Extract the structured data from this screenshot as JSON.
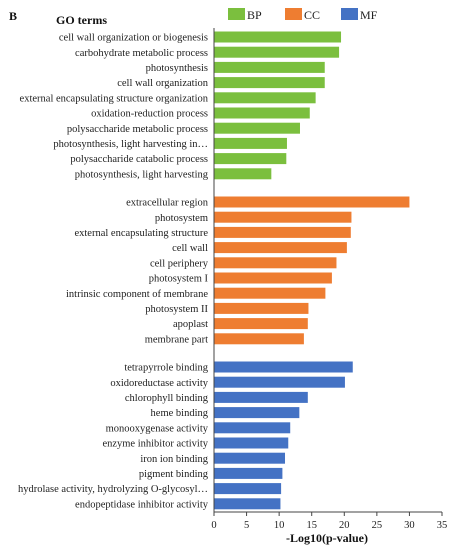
{
  "chart_data": {
    "type": "bar",
    "orientation": "horizontal",
    "panel_label": "B",
    "yaxis_title": "GO terms",
    "xlabel": "-Log10(p-value)",
    "xlim": [
      0,
      35
    ],
    "xticks": [
      "0",
      "5",
      "10",
      "15",
      "20",
      "25",
      "30",
      "35"
    ],
    "grid": false,
    "legend_position": "top-right",
    "series": [
      {
        "name": "BP",
        "color": "#7bbf3e",
        "categories": [
          "cell wall organization or biogenesis",
          "carbohydrate metabolic process",
          "photosynthesis",
          "cell wall organization",
          "external encapsulating structure organization",
          "oxidation-reduction process",
          "polysaccharide metabolic process",
          "photosynthesis, light harvesting in…",
          "polysaccharide catabolic process",
          "photosynthesis, light harvesting"
        ],
        "values": [
          19.5,
          19.2,
          17.0,
          17.0,
          15.6,
          14.7,
          13.2,
          11.2,
          11.1,
          8.8
        ]
      },
      {
        "name": "CC",
        "color": "#ee7d31",
        "categories": [
          "extracellular region",
          "photosystem",
          "external encapsulating structure",
          "cell wall",
          "cell periphery",
          "photosystem I",
          "intrinsic component of membrane",
          "photosystem II",
          "apoplast",
          "membrane part"
        ],
        "values": [
          30.0,
          21.1,
          21.0,
          20.4,
          18.8,
          18.1,
          17.1,
          14.5,
          14.4,
          13.8
        ]
      },
      {
        "name": "MF",
        "color": "#4472c4",
        "categories": [
          "tetrapyrrole binding",
          "oxidoreductase activity",
          "chlorophyll binding",
          "heme binding",
          "monooxygenase activity",
          "enzyme inhibitor activity",
          "iron ion binding",
          "pigment binding",
          "hydrolase activity, hydrolyzing O-glycosyl…",
          "endopeptidase inhibitor activity"
        ],
        "values": [
          21.3,
          20.1,
          14.4,
          13.1,
          11.7,
          11.4,
          10.9,
          10.5,
          10.3,
          10.2
        ]
      }
    ]
  }
}
